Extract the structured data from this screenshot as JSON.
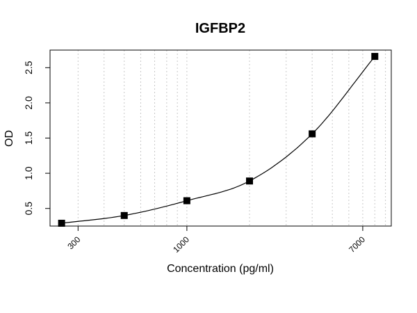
{
  "chart_data": {
    "type": "scatter",
    "title": "IGFBP2",
    "xlabel": "Concentration (pg/ml)",
    "ylabel": "OD",
    "x_scale": "log",
    "xlim": [
      220,
      9600
    ],
    "ylim": [
      0.25,
      2.75
    ],
    "x_ticks": [
      300,
      1000,
      7000
    ],
    "y_ticks": [
      0.5,
      1.0,
      1.5,
      2.0,
      2.5
    ],
    "y_tick_labels": [
      "0.5",
      "1.0",
      "1.5",
      "2.0",
      "2.5"
    ],
    "x_gridlines": [
      300,
      400,
      500,
      600,
      700,
      800,
      900,
      1000,
      2000,
      3000,
      4000,
      5000,
      6000,
      7000,
      8000,
      9000
    ],
    "grid": "vertical dotted",
    "points": [
      {
        "x": 250,
        "y": 0.29
      },
      {
        "x": 500,
        "y": 0.4
      },
      {
        "x": 1000,
        "y": 0.61
      },
      {
        "x": 2000,
        "y": 0.89
      },
      {
        "x": 4000,
        "y": 1.56
      },
      {
        "x": 8000,
        "y": 2.66
      }
    ],
    "fit_curve": true,
    "colors": {
      "points": "#000000",
      "curve": "#000000",
      "grid": "#c8c8c8"
    }
  }
}
